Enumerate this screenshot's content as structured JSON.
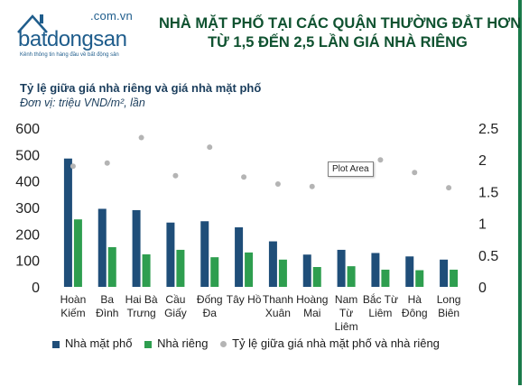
{
  "logo": {
    "domain": ".com.vn",
    "wordmark": "batdongsan",
    "tagline": "Kênh thông tin hàng đầu về bất động sản"
  },
  "headline": {
    "line1": "NHÀ MẶT PHỐ TẠI CÁC QUẬN THƯỜNG ĐẮT HƠN",
    "line2": "TỪ 1,5 ĐẾN 2,5 LẦN GIÁ NHÀ RIÊNG"
  },
  "tooltip": "Plot Area",
  "colors": {
    "street_house": "#1f4e79",
    "private_house": "#2e9e4f",
    "ratio": "#b4b4b4",
    "headline": "#0f5230",
    "accent_border": "#1b7a4a"
  },
  "chart_data": {
    "type": "bar",
    "title": "Tỷ lệ giữa giá nhà riêng và giá nhà mặt phố",
    "unit": "Đơn vị: triệu VND/m², lần",
    "categories": [
      [
        "Hoàn",
        "Kiếm"
      ],
      [
        "Ba",
        "Đình"
      ],
      [
        "Hai Bà",
        "Trưng"
      ],
      [
        "Cầu",
        "Giấy"
      ],
      [
        "Đống",
        "Đa"
      ],
      [
        "Tây Hồ"
      ],
      [
        "Thanh",
        "Xuân"
      ],
      [
        "Hoàng",
        "Mai"
      ],
      [
        "Nam",
        "Từ",
        "Liêm"
      ],
      [
        "Bắc Từ",
        "Liêm"
      ],
      [
        "Hà",
        "Đông"
      ],
      [
        "Long",
        "Biên"
      ]
    ],
    "series": [
      {
        "name": "Nhà mặt phố",
        "type": "bar",
        "axis": "left",
        "values": [
          485,
          295,
          290,
          243,
          248,
          225,
          172,
          122,
          140,
          128,
          115,
          103
        ]
      },
      {
        "name": "Nhà riêng",
        "type": "bar",
        "axis": "left",
        "values": [
          255,
          150,
          123,
          140,
          112,
          130,
          103,
          75,
          78,
          65,
          63,
          65
        ]
      },
      {
        "name": "Tỷ lệ giữa giá nhà mặt phố và nhà riêng",
        "type": "scatter",
        "axis": "right",
        "values": [
          1.9,
          1.95,
          2.35,
          1.75,
          2.2,
          1.73,
          1.62,
          1.58,
          1.8,
          2.0,
          1.8,
          1.56
        ]
      }
    ],
    "ylim_left": [
      0,
      600
    ],
    "yticks_left": [
      "0",
      "100",
      "200",
      "300",
      "400",
      "500",
      "600"
    ],
    "ylim_right": [
      0,
      2.5
    ],
    "yticks_right": [
      "0",
      "0.5",
      "1",
      "1.5",
      "2",
      "2.5"
    ],
    "grid": false,
    "legend_position": "bottom"
  }
}
